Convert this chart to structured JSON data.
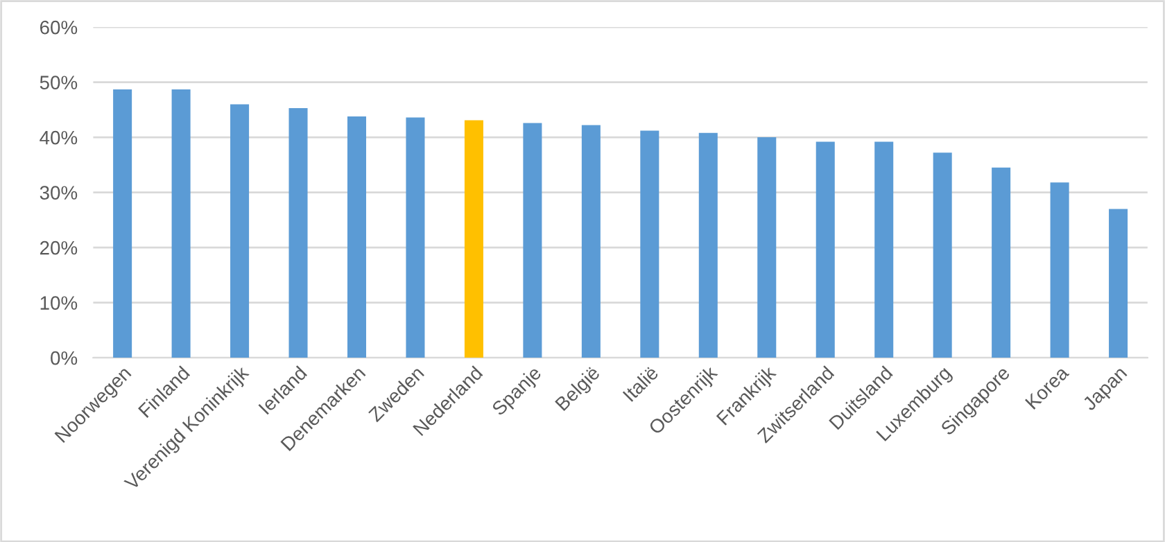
{
  "chart_data": {
    "type": "bar",
    "categories": [
      "Noorwegen",
      "Finland",
      "Verenigd Koninkrijk",
      "Ierland",
      "Denemarken",
      "Zweden",
      "Nederland",
      "Spanje",
      "België",
      "Italië",
      "Oostenrijk",
      "Frankrijk",
      "Zwitserland",
      "Duitsland",
      "Luxemburg",
      "Singapore",
      "Korea",
      "Japan"
    ],
    "values": [
      48.7,
      48.7,
      46.0,
      45.3,
      43.8,
      43.6,
      43.1,
      42.6,
      42.2,
      41.2,
      40.8,
      40.0,
      39.2,
      39.2,
      37.2,
      34.5,
      31.8,
      27.0
    ],
    "colors": [
      "#5b9bd5",
      "#5b9bd5",
      "#5b9bd5",
      "#5b9bd5",
      "#5b9bd5",
      "#5b9bd5",
      "#ffc000",
      "#5b9bd5",
      "#5b9bd5",
      "#5b9bd5",
      "#5b9bd5",
      "#5b9bd5",
      "#5b9bd5",
      "#5b9bd5",
      "#5b9bd5",
      "#5b9bd5",
      "#5b9bd5",
      "#5b9bd5"
    ],
    "ylim": [
      0,
      60
    ],
    "yticks": [
      {
        "value": 0,
        "label": "0%"
      },
      {
        "value": 10,
        "label": "10%"
      },
      {
        "value": 20,
        "label": "20%"
      },
      {
        "value": 30,
        "label": "30%"
      },
      {
        "value": 40,
        "label": "40%"
      },
      {
        "value": 50,
        "label": "50%"
      },
      {
        "value": 60,
        "label": "60%"
      }
    ],
    "grid": "y"
  }
}
